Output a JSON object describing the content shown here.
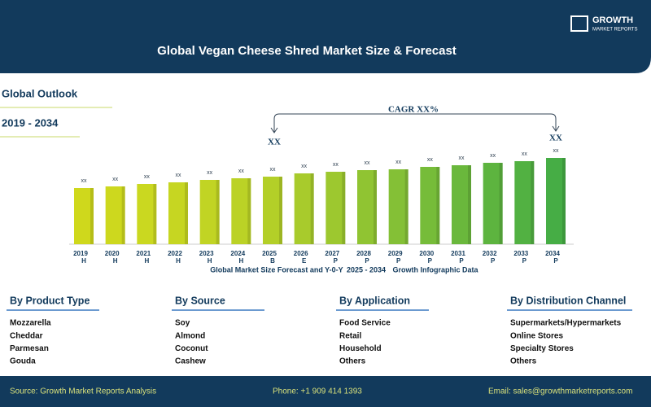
{
  "header": {
    "title": "Global Vegan Cheese Shred Market Size & Forecast",
    "logo_line1": "GROWTH",
    "logo_line2": "MARKET REPORTS"
  },
  "outlook": {
    "title": "Global Outlook",
    "period": "2019 - 2034"
  },
  "chart_data": {
    "type": "bar",
    "categories": [
      "2019",
      "2020",
      "2021",
      "2022",
      "2023",
      "2024",
      "2025",
      "2026",
      "2027",
      "2028",
      "2029",
      "2030",
      "2031",
      "2032",
      "2033",
      "2034"
    ],
    "phases": [
      "H",
      "H",
      "H",
      "H",
      "H",
      "H",
      "B",
      "E",
      "P",
      "P",
      "P",
      "P",
      "P",
      "P",
      "P",
      "P"
    ],
    "values": [
      69,
      71,
      74,
      76,
      79,
      81,
      83,
      87,
      89,
      91,
      92,
      95,
      97,
      100,
      102,
      106
    ],
    "value_labels": [
      "xx",
      "xx",
      "xx",
      "xx",
      "xx",
      "xx",
      "xx",
      "xx",
      "xx",
      "xx",
      "xx",
      "xx",
      "xx",
      "xx",
      "xx",
      "xx"
    ],
    "colors": [
      "#cfd81c",
      "#cdd81e",
      "#cad820",
      "#c6d622",
      "#c1d424",
      "#bbd226",
      "#b3cf28",
      "#a8cb2c",
      "#9dc82f",
      "#90c432",
      "#84c036",
      "#76bc39",
      "#6ab83c",
      "#5db43f",
      "#52b142",
      "#46ad45"
    ],
    "ylim": [
      0,
      120
    ],
    "cagr_label": "CAGR XX%",
    "start_label": "XX",
    "end_label": "XX",
    "caption": [
      "Global Market Size Forecast and Y-0-Y",
      "2025 - 2034",
      "Growth Infographic Data"
    ]
  },
  "segments": [
    {
      "title": "By Product Type",
      "items": [
        "Mozzarella",
        "Cheddar",
        "Parmesan",
        "Gouda"
      ]
    },
    {
      "title": "By Source",
      "items": [
        "Soy",
        "Almond",
        "Coconut",
        "Cashew"
      ]
    },
    {
      "title": "By Application",
      "items": [
        "Food Service",
        "Retail",
        "Household",
        "Others"
      ]
    },
    {
      "title": "By Distribution Channel",
      "items": [
        "Supermarkets/Hypermarkets",
        "Online Stores",
        "Specialty Stores",
        "Others"
      ]
    }
  ],
  "footer": {
    "source": "Source: Growth Market Reports Analysis",
    "phone": "Phone: +1 909 414 1393",
    "email": "Email: sales@growthmarketreports.com"
  }
}
